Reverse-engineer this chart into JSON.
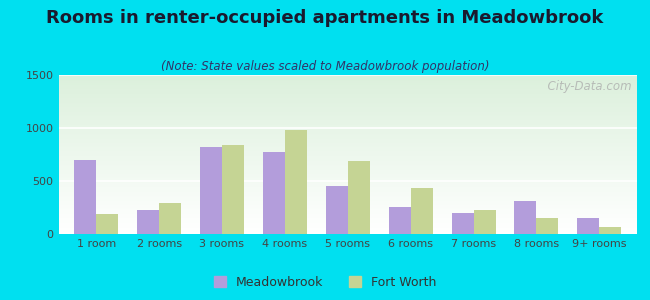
{
  "title": "Rooms in renter-occupied apartments in Meadowbrook",
  "subtitle": "(Note: State values scaled to Meadowbrook population)",
  "categories": [
    "1 room",
    "2 rooms",
    "3 rooms",
    "4 rooms",
    "5 rooms",
    "6 rooms",
    "7 rooms",
    "8 rooms",
    "9+ rooms"
  ],
  "meadowbrook": [
    700,
    225,
    820,
    775,
    450,
    255,
    200,
    315,
    155
  ],
  "fort_worth": [
    185,
    295,
    840,
    985,
    685,
    435,
    230,
    155,
    65
  ],
  "meadowbrook_color": "#b39ddb",
  "fort_worth_color": "#c5d494",
  "ylim": [
    0,
    1500
  ],
  "yticks": [
    0,
    500,
    1000,
    1500
  ],
  "background_outer": "#00e0f0",
  "watermark": "  City-Data.com",
  "title_fontsize": 13,
  "subtitle_fontsize": 8.5,
  "tick_fontsize": 8,
  "legend_fontsize": 9
}
